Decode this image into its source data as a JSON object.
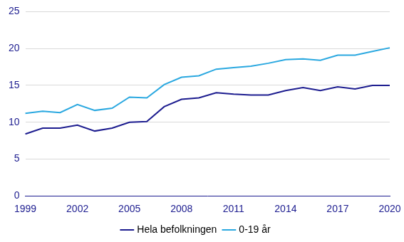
{
  "chart_data": {
    "type": "line",
    "categories": [
      "1999",
      null,
      null,
      "2002",
      null,
      null,
      "2005",
      null,
      null,
      "2008",
      null,
      null,
      "2011",
      null,
      null,
      "2014",
      null,
      null,
      "2017",
      null,
      null,
      "2020"
    ],
    "series": [
      {
        "name": "Hela befolkningen",
        "color": "#1c1c8f",
        "values": [
          8.4,
          9.2,
          9.2,
          9.6,
          8.8,
          9.2,
          10.0,
          10.1,
          12.1,
          13.1,
          13.3,
          14.0,
          13.8,
          13.7,
          13.7,
          14.3,
          14.7,
          14.3,
          14.8,
          14.5,
          15.0,
          15.0
        ]
      },
      {
        "name": "0-19 år",
        "color": "#2aa8e0",
        "values": [
          11.2,
          11.5,
          11.3,
          12.4,
          11.6,
          11.9,
          13.4,
          13.3,
          15.1,
          16.1,
          16.3,
          17.2,
          17.4,
          17.6,
          18.0,
          18.5,
          18.6,
          18.4,
          19.1,
          19.1,
          19.6,
          20.1
        ]
      }
    ],
    "ylim": [
      0,
      25
    ],
    "yticks": [
      0,
      5,
      10,
      15,
      20,
      25
    ],
    "grid": true,
    "legend": "bottom"
  }
}
